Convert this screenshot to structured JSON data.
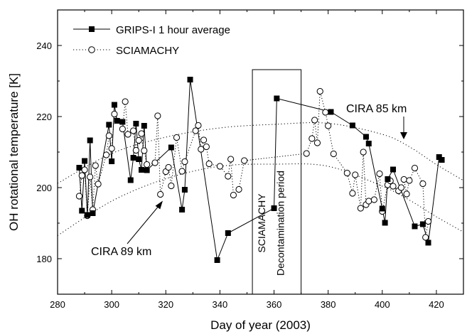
{
  "chart_data": {
    "type": "scatter",
    "xlabel": "Day of year (2003)",
    "ylabel": "OH rotational temperature [K]",
    "xlim": [
      280,
      430
    ],
    "ylim": [
      170,
      250
    ],
    "xticks": [
      280,
      300,
      320,
      340,
      360,
      380,
      400,
      420
    ],
    "yticks": [
      180,
      200,
      220,
      240
    ],
    "grid": false,
    "legend_position": "top-left",
    "series": [
      {
        "name": "GRIPS-I 1 hour average",
        "style": "filled-square-solid-line",
        "points": [
          [
            288,
            205.6
          ],
          [
            289,
            193.5
          ],
          [
            290,
            207.5
          ],
          [
            291,
            192.3
          ],
          [
            292,
            213.3
          ],
          [
            293,
            192.8
          ],
          [
            299,
            217.7
          ],
          [
            300,
            207.4
          ],
          [
            301,
            223.3
          ],
          [
            302,
            218.8
          ],
          [
            304,
            218.5
          ],
          [
            307,
            202.1
          ],
          [
            308,
            208.4
          ],
          [
            309,
            218.0
          ],
          [
            310,
            208.0
          ],
          [
            311,
            205.0
          ],
          [
            312,
            217.4
          ],
          [
            313,
            204.9
          ],
          [
            322,
            211.3
          ],
          [
            326,
            193.8
          ],
          [
            327,
            199.4
          ],
          [
            329,
            230.4
          ],
          [
            339,
            179.6
          ],
          [
            343,
            187.2
          ],
          [
            360,
            194.2
          ],
          [
            361,
            225.1
          ],
          [
            381,
            221.3
          ],
          [
            389,
            217.5
          ],
          [
            394,
            214.3
          ],
          [
            395,
            212.4
          ],
          [
            400,
            194.1
          ],
          [
            401,
            190.1
          ],
          [
            402,
            202.4
          ],
          [
            404,
            205.1
          ],
          [
            412,
            189.1
          ],
          [
            415,
            189.7
          ],
          [
            417,
            184.5
          ],
          [
            421,
            208.6
          ],
          [
            422,
            207.8
          ]
        ]
      },
      {
        "name": "SCIAMACHY",
        "style": "open-circle-dotted-line",
        "points": [
          [
            288,
            197.6
          ],
          [
            289,
            203.4
          ],
          [
            290,
            205.0
          ],
          [
            291,
            192.1
          ],
          [
            292,
            203.0
          ],
          [
            293,
            193.8
          ],
          [
            294,
            206.2
          ],
          [
            295,
            201.0
          ],
          [
            298,
            209.2
          ],
          [
            299,
            214.6
          ],
          [
            300,
            211.0
          ],
          [
            301,
            220.7
          ],
          [
            304,
            216.5
          ],
          [
            305,
            224.2
          ],
          [
            306,
            215.0
          ],
          [
            308,
            216.0
          ],
          [
            309,
            210.5
          ],
          [
            310,
            213.3
          ],
          [
            311,
            215.2
          ],
          [
            312,
            210.4
          ],
          [
            313,
            206.5
          ],
          [
            316,
            207.0
          ],
          [
            317,
            220.2
          ],
          [
            318,
            198.1
          ],
          [
            320,
            204.5
          ],
          [
            321,
            205.7
          ],
          [
            322,
            200.5
          ],
          [
            324,
            214.1
          ],
          [
            326,
            204.6
          ],
          [
            327,
            207.3
          ],
          [
            331,
            216.0
          ],
          [
            332,
            217.5
          ],
          [
            333,
            210.8
          ],
          [
            334,
            213.4
          ],
          [
            335,
            211.5
          ],
          [
            336,
            206.7
          ],
          [
            340,
            206.0
          ],
          [
            343,
            203.2
          ],
          [
            344,
            208.0
          ],
          [
            345,
            197.9
          ],
          [
            347,
            199.5
          ],
          [
            349,
            207.6
          ],
          [
            372,
            209.6
          ],
          [
            374,
            213.8
          ],
          [
            375,
            219.0
          ],
          [
            376,
            212.6
          ],
          [
            377,
            227.1
          ],
          [
            379,
            221.2
          ],
          [
            380,
            217.4
          ],
          [
            382,
            209.5
          ],
          [
            387,
            204.1
          ],
          [
            389,
            198.4
          ],
          [
            390,
            203.6
          ],
          [
            392,
            194.2
          ],
          [
            393,
            210.0
          ],
          [
            394,
            195.2
          ],
          [
            395,
            196.2
          ],
          [
            397,
            196.6
          ],
          [
            399,
            203.9
          ],
          [
            400,
            193.3
          ],
          [
            402,
            200.8
          ],
          [
            403,
            201.9
          ],
          [
            404,
            200.4
          ],
          [
            406,
            199.1
          ],
          [
            407,
            200.0
          ],
          [
            408,
            202.3
          ],
          [
            409,
            198.2
          ],
          [
            410,
            202.0
          ],
          [
            412,
            205.5
          ],
          [
            415,
            201.1
          ],
          [
            416,
            186.0
          ],
          [
            417,
            190.5
          ]
        ]
      }
    ],
    "reference_curves": [
      {
        "label": "CIRA 85 km",
        "points": [
          [
            280,
            201.2
          ],
          [
            300,
            209.6
          ],
          [
            320,
            214.2
          ],
          [
            340,
            216.8
          ],
          [
            360,
            217.8
          ],
          [
            380,
            218.1
          ],
          [
            400,
            215.0
          ],
          [
            410,
            211.5
          ],
          [
            420,
            206.5
          ],
          [
            430,
            202.0
          ]
        ]
      },
      {
        "label": "CIRA 89 km",
        "points": [
          [
            280,
            186.5
          ],
          [
            300,
            196.2
          ],
          [
            320,
            202.5
          ],
          [
            340,
            206.0
          ],
          [
            360,
            206.6
          ],
          [
            380,
            206.0
          ],
          [
            400,
            200.4
          ],
          [
            410,
            196.5
          ],
          [
            420,
            191.8
          ],
          [
            430,
            187.5
          ]
        ]
      }
    ],
    "annotations": [
      {
        "type": "box",
        "x_range": [
          352,
          370
        ],
        "y_range": [
          170,
          233.2
        ],
        "lines": [
          "SCIAMACHY",
          "Decontamination period"
        ]
      }
    ]
  }
}
